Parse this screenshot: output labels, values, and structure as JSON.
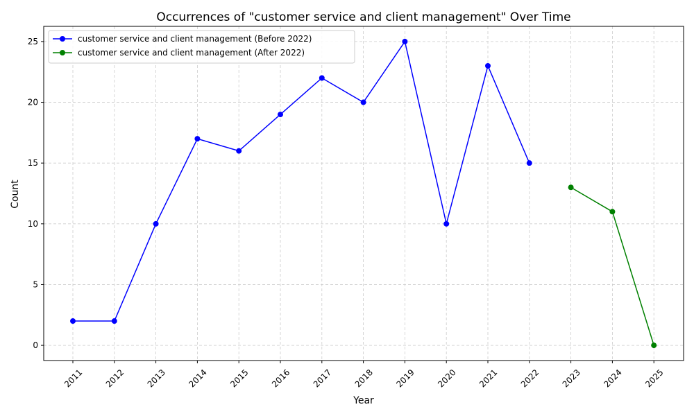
{
  "chart_data": {
    "type": "line",
    "title": "Occurrences of \"customer service and client management\" Over Time",
    "xlabel": "Year",
    "ylabel": "Count",
    "ylim": [
      -1.25,
      26.25
    ],
    "yticks": [
      0,
      5,
      10,
      15,
      20,
      25
    ],
    "categories": [
      "2011",
      "2012",
      "2013",
      "2014",
      "2015",
      "2016",
      "2017",
      "2018",
      "2019",
      "2020",
      "2021",
      "2022",
      "2023",
      "2024",
      "2025"
    ],
    "grid": true,
    "legend_position": "top-left",
    "series": [
      {
        "name": "customer service and client management (Before 2022)",
        "color": "#0000ff",
        "x": [
          "2011",
          "2012",
          "2013",
          "2014",
          "2015",
          "2016",
          "2017",
          "2018",
          "2019",
          "2020",
          "2021",
          "2022"
        ],
        "values": [
          2,
          2,
          10,
          17,
          16,
          19,
          22,
          20,
          25,
          10,
          23,
          15
        ]
      },
      {
        "name": "customer service and client management (After 2022)",
        "color": "#008000",
        "x": [
          "2023",
          "2024",
          "2025"
        ],
        "values": [
          13,
          11,
          0
        ]
      }
    ]
  }
}
